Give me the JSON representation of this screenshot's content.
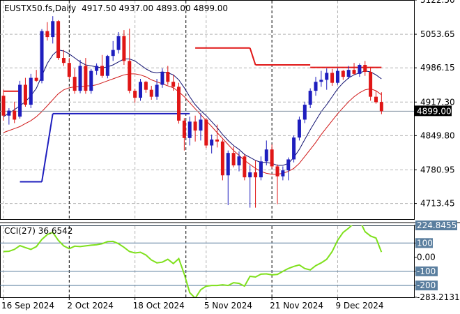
{
  "chart_data": [
    {
      "type": "candlestick",
      "title": "EUSTX50.fs,Daily",
      "ohlc_header": "4917.50 4937.00 4893.00 4899.00",
      "last_price_label": "4899.00",
      "ylim": [
        4682.0,
        5122.5
      ],
      "y_ticks": [
        "5122.50",
        "5053.65",
        "4986.15",
        "4917.30",
        "4849.80",
        "4780.95",
        "4713.45"
      ],
      "x_ticks": [
        "16 Sep 2024",
        "2 Oct 2024",
        "18 Oct 2024",
        "5 Nov 2024",
        "21 Nov 2024",
        "9 Dec 2024"
      ],
      "x_tick_bars": [
        0,
        12,
        24,
        37,
        49,
        61
      ],
      "bull_color": "#1e1ebe",
      "bear_color": "#e01616",
      "bars": [
        [
          4930,
          4942,
          4880,
          4890
        ],
        [
          4890,
          4905,
          4872,
          4900
        ],
        [
          4900,
          4918,
          4875,
          4882
        ],
        [
          4888,
          4960,
          4884,
          4952
        ],
        [
          4952,
          4966,
          4908,
          4912
        ],
        [
          4912,
          4974,
          4905,
          4966
        ],
        [
          4966,
          4982,
          4958,
          4960
        ],
        [
          4960,
          5064,
          4955,
          5060
        ],
        [
          5060,
          5078,
          5041,
          5048
        ],
        [
          5048,
          5090,
          5035,
          5080
        ],
        [
          5080,
          5082,
          5002,
          5006
        ],
        [
          5006,
          5022,
          4990,
          4996
        ],
        [
          4996,
          5006,
          4964,
          4968
        ],
        [
          4968,
          4985,
          4934,
          4940
        ],
        [
          4940,
          5002,
          4935,
          4990
        ],
        [
          4990,
          5006,
          4934,
          4940
        ],
        [
          4940,
          4984,
          4934,
          4980
        ],
        [
          4980,
          4995,
          4972,
          4990
        ],
        [
          4990,
          5012,
          4966,
          4970
        ],
        [
          4970,
          5012,
          4965,
          5010
        ],
        [
          5010,
          5040,
          5000,
          5022
        ],
        [
          5022,
          5058,
          5015,
          5050
        ],
        [
          5050,
          5062,
          4992,
          5000
        ],
        [
          5000,
          5065,
          4935,
          4940
        ],
        [
          4940,
          4944,
          4916,
          4926
        ],
        [
          4926,
          4964,
          4920,
          4958
        ],
        [
          4958,
          4960,
          4936,
          4942
        ],
        [
          4942,
          4950,
          4922,
          4928
        ],
        [
          4928,
          4964,
          4922,
          4952
        ],
        [
          4952,
          4985,
          4946,
          4978
        ],
        [
          4978,
          4990,
          4952,
          4958
        ],
        [
          4958,
          4972,
          4940,
          4948
        ],
        [
          4948,
          4956,
          4874,
          4880
        ],
        [
          4880,
          4885,
          4820,
          4845
        ],
        [
          4845,
          4888,
          4830,
          4878
        ],
        [
          4878,
          4890,
          4838,
          4860
        ],
        [
          4860,
          4895,
          4840,
          4882
        ],
        [
          4882,
          4885,
          4825,
          4830
        ],
        [
          4830,
          4852,
          4814,
          4842
        ],
        [
          4842,
          4872,
          4826,
          4838
        ],
        [
          4838,
          4842,
          4760,
          4770
        ],
        [
          4770,
          4820,
          4710,
          4815
        ],
        [
          4815,
          4828,
          4786,
          4790
        ],
        [
          4790,
          4818,
          4778,
          4808
        ],
        [
          4808,
          4812,
          4760,
          4766
        ],
        [
          4766,
          4790,
          4705,
          4776
        ],
        [
          4776,
          4800,
          4705,
          4766
        ],
        [
          4766,
          4808,
          4760,
          4798
        ],
        [
          4798,
          4840,
          4790,
          4822
        ],
        [
          4822,
          4832,
          4784,
          4788
        ],
        [
          4788,
          4792,
          4712,
          4768
        ],
        [
          4768,
          4788,
          4760,
          4780
        ],
        [
          4780,
          4806,
          4760,
          4802
        ],
        [
          4802,
          4850,
          4796,
          4846
        ],
        [
          4846,
          4888,
          4840,
          4882
        ],
        [
          4882,
          4918,
          4875,
          4912
        ],
        [
          4912,
          4945,
          4905,
          4940
        ],
        [
          4940,
          4968,
          4930,
          4958
        ],
        [
          4958,
          4980,
          4948,
          4962
        ],
        [
          4962,
          4985,
          4942,
          4976
        ],
        [
          4976,
          4984,
          4950,
          4956
        ],
        [
          4956,
          4985,
          4952,
          4980
        ],
        [
          4980,
          4982,
          4962,
          4968
        ],
        [
          4968,
          4990,
          4964,
          4982
        ],
        [
          4982,
          4996,
          4972,
          4974
        ],
        [
          4974,
          4995,
          4968,
          4992
        ],
        [
          4992,
          5000,
          4970,
          4978
        ],
        [
          4978,
          4988,
          4920,
          4928
        ],
        [
          4928,
          4940,
          4914,
          4917
        ],
        [
          4917.5,
          4937,
          4893,
          4899
        ]
      ],
      "ma_fast": [
        4888,
        4895,
        4902,
        4910,
        4918,
        4930,
        4945,
        4970,
        4995,
        5012,
        5022,
        5020,
        5014,
        5006,
        4998,
        4992,
        4990,
        4988,
        4986,
        4988,
        4992,
        4998,
        5004,
        5004,
        5000,
        4992,
        4984,
        4978,
        4976,
        4978,
        4976,
        4972,
        4962,
        4946,
        4928,
        4912,
        4900,
        4890,
        4878,
        4866,
        4852,
        4840,
        4830,
        4822,
        4812,
        4806,
        4800,
        4796,
        4796,
        4794,
        4790,
        4790,
        4794,
        4806,
        4822,
        4842,
        4862,
        4880,
        4898,
        4912,
        4928,
        4944,
        4956,
        4966,
        4972,
        4976,
        4980,
        4978,
        4972,
        4964
      ],
      "ma_slow": [
        4856,
        4860,
        4864,
        4868,
        4874,
        4880,
        4888,
        4898,
        4910,
        4922,
        4934,
        4942,
        4946,
        4948,
        4948,
        4950,
        4950,
        4952,
        4956,
        4960,
        4964,
        4968,
        4972,
        4974,
        4974,
        4972,
        4968,
        4962,
        4958,
        4954,
        4950,
        4946,
        4938,
        4928,
        4916,
        4904,
        4892,
        4880,
        4868,
        4856,
        4844,
        4832,
        4820,
        4810,
        4800,
        4792,
        4784,
        4778,
        4774,
        4772,
        4772,
        4774,
        4778,
        4784,
        4794,
        4808,
        4822,
        4836,
        4852,
        4866,
        4880,
        4894,
        4906,
        4918,
        4928,
        4936,
        4942,
        4944,
        4940,
        4932
      ],
      "channel": [
        {
          "from": 0,
          "to": 3,
          "value": 4939,
          "color": "#e01616"
        },
        {
          "from": 3,
          "to": 7,
          "value": 4757,
          "color": "#1e1ebe"
        },
        {
          "from": 7,
          "to": 9,
          "value": 4757,
          "to_value": 4894,
          "color": "#1e1ebe"
        },
        {
          "from": 9,
          "to": 34,
          "value": 4894,
          "color": "#1e1ebe"
        },
        {
          "from": 35,
          "to": 45,
          "value": 5026,
          "color": "#e01616"
        },
        {
          "from": 45,
          "to": 46,
          "value": 5026,
          "to_value": 4992,
          "color": "#e01616"
        },
        {
          "from": 46,
          "to": 56,
          "value": 4992,
          "color": "#e01616"
        },
        {
          "from": 56,
          "to": 69,
          "value": 4987,
          "color": "#e01616"
        }
      ],
      "price_line": 4899.0
    },
    {
      "type": "line",
      "title": "CCI(27) 36.6542",
      "ylim": [
        -283.2131,
        224.8455
      ],
      "y_ticks": [
        "224.8455",
        "100",
        "0.00",
        "-100",
        "-200",
        "-283.2131"
      ],
      "levels": [
        224.8455,
        100,
        -100,
        -200
      ],
      "line_color": "#7fe01c",
      "values": [
        40,
        42,
        55,
        82,
        68,
        55,
        75,
        125,
        160,
        175,
        120,
        80,
        60,
        78,
        75,
        80,
        85,
        88,
        95,
        110,
        112,
        95,
        70,
        40,
        30,
        35,
        15,
        -20,
        -40,
        -35,
        -15,
        -45,
        -10,
        -120,
        -250,
        -290,
        -230,
        -205,
        -200,
        -200,
        -195,
        -200,
        -180,
        -185,
        -205,
        -135,
        -140,
        -120,
        -118,
        -125,
        -122,
        -100,
        -80,
        -65,
        -55,
        -80,
        -90,
        -60,
        -40,
        -15,
        40,
        120,
        175,
        205,
        240,
        260,
        180,
        150,
        135,
        36.65
      ]
    }
  ]
}
